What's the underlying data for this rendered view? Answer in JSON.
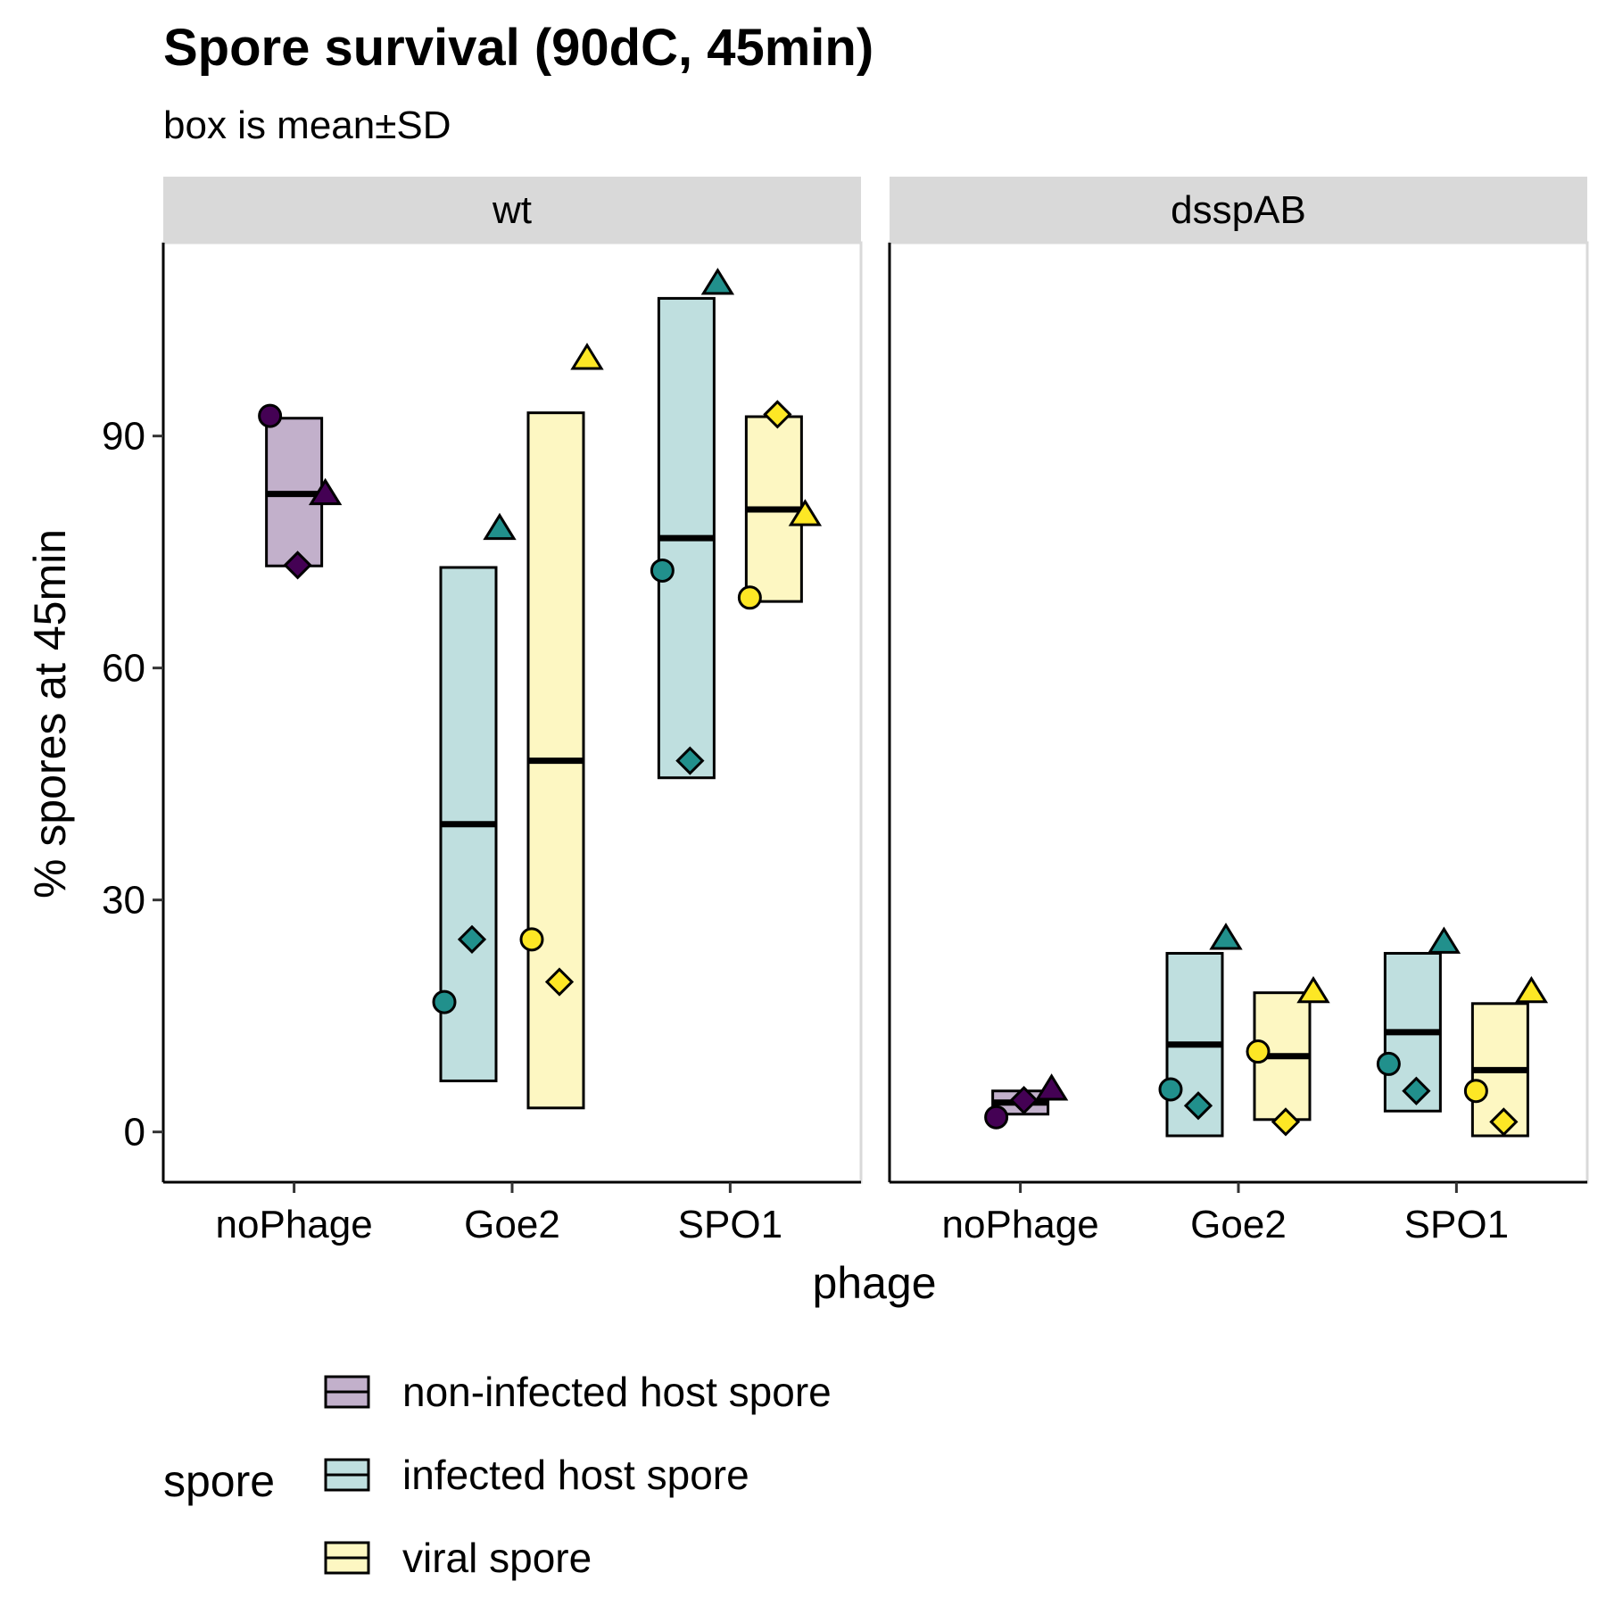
{
  "chart_data": {
    "type": "box_points",
    "title": "Spore survival (90dC, 45min)",
    "subtitle": "box is mean±SD",
    "xlabel": "phage",
    "ylabel": "% spores at 45min",
    "ylim": [
      -6.5,
      115
    ],
    "yticks": [
      0,
      30,
      60,
      90
    ],
    "categories": [
      "noPhage",
      "Goe2",
      "SPO1"
    ],
    "grid": false,
    "legend": {
      "title": "spore",
      "placement": "bottom",
      "entries": [
        {
          "key": "non-infected",
          "label": "non-infected host spore",
          "fill": "#c2b0cb",
          "point": "#440154"
        },
        {
          "key": "infected",
          "label": "infected host spore",
          "fill": "#bfdfdf",
          "point": "#21908c"
        },
        {
          "key": "viral",
          "label": "viral spore",
          "fill": "#fdf7c2",
          "point": "#fde725"
        }
      ]
    },
    "panels": [
      {
        "label": "wt",
        "boxes": [
          {
            "category": "noPhage",
            "spore": "non-infected",
            "mean": 82.5,
            "lower": 73.2,
            "upper": 92.3,
            "points": [
              {
                "shape": "circle",
                "y": 92.6
              },
              {
                "shape": "diamond",
                "y": 73.3
              },
              {
                "shape": "triangle",
                "y": 82.5
              }
            ]
          },
          {
            "category": "Goe2",
            "spore": "infected",
            "mean": 39.8,
            "lower": 6.6,
            "upper": 73.0,
            "points": [
              {
                "shape": "circle",
                "y": 16.8
              },
              {
                "shape": "diamond",
                "y": 24.9
              },
              {
                "shape": "triangle",
                "y": 78.0
              }
            ]
          },
          {
            "category": "Goe2",
            "spore": "viral",
            "mean": 48.0,
            "lower": 3.1,
            "upper": 93.0,
            "points": [
              {
                "shape": "circle",
                "y": 24.9
              },
              {
                "shape": "diamond",
                "y": 19.4
              },
              {
                "shape": "triangle",
                "y": 100.0
              }
            ]
          },
          {
            "category": "SPO1",
            "spore": "infected",
            "mean": 76.8,
            "lower": 45.8,
            "upper": 107.8,
            "points": [
              {
                "shape": "circle",
                "y": 72.6
              },
              {
                "shape": "diamond",
                "y": 48.0
              },
              {
                "shape": "triangle",
                "y": 109.7
              }
            ]
          },
          {
            "category": "SPO1",
            "spore": "viral",
            "mean": 80.5,
            "lower": 68.6,
            "upper": 92.5,
            "points": [
              {
                "shape": "circle",
                "y": 69.1
              },
              {
                "shape": "diamond",
                "y": 92.8
              },
              {
                "shape": "triangle",
                "y": 79.8
              }
            ]
          }
        ]
      },
      {
        "label": "dsspAB",
        "boxes": [
          {
            "category": "noPhage",
            "spore": "non-infected",
            "mean": 3.8,
            "lower": 2.3,
            "upper": 5.3,
            "points": [
              {
                "shape": "circle",
                "y": 1.9
              },
              {
                "shape": "diamond",
                "y": 4.1
              },
              {
                "shape": "triangle",
                "y": 5.5
              }
            ]
          },
          {
            "category": "Goe2",
            "spore": "infected",
            "mean": 11.3,
            "lower": -0.5,
            "upper": 23.1,
            "points": [
              {
                "shape": "circle",
                "y": 5.5
              },
              {
                "shape": "diamond",
                "y": 3.4
              },
              {
                "shape": "triangle",
                "y": 25.0
              }
            ]
          },
          {
            "category": "Goe2",
            "spore": "viral",
            "mean": 9.8,
            "lower": 1.6,
            "upper": 18.0,
            "points": [
              {
                "shape": "circle",
                "y": 10.4
              },
              {
                "shape": "diamond",
                "y": 1.3
              },
              {
                "shape": "triangle",
                "y": 18.1
              }
            ]
          },
          {
            "category": "SPO1",
            "spore": "infected",
            "mean": 12.9,
            "lower": 2.7,
            "upper": 23.1,
            "points": [
              {
                "shape": "circle",
                "y": 8.8
              },
              {
                "shape": "diamond",
                "y": 5.3
              },
              {
                "shape": "triangle",
                "y": 24.5
              }
            ]
          },
          {
            "category": "SPO1",
            "spore": "viral",
            "mean": 8.0,
            "lower": -0.5,
            "upper": 16.6,
            "points": [
              {
                "shape": "circle",
                "y": 5.3
              },
              {
                "shape": "diamond",
                "y": 1.3
              },
              {
                "shape": "triangle",
                "y": 18.1
              }
            ]
          }
        ]
      }
    ]
  }
}
